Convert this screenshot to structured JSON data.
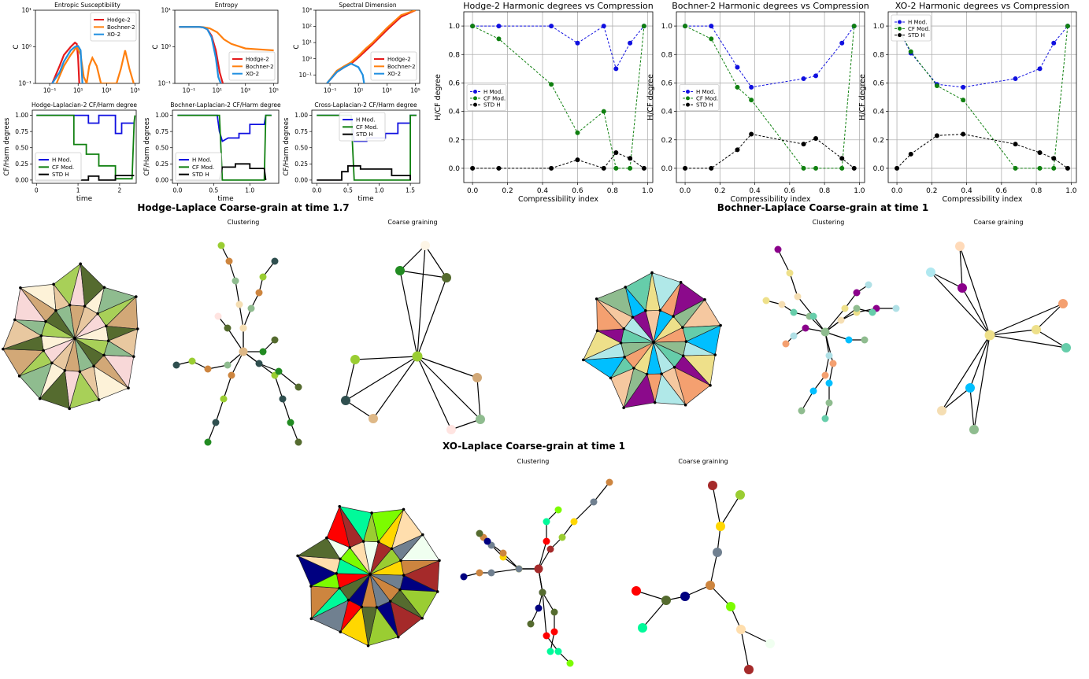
{
  "palette": {
    "hodge": "#e41a1c",
    "bochner": "#ff7f0e",
    "xo": "#1f8fe0",
    "hmod": "#1010e0",
    "cfmod": "#108010",
    "stdh": "#000000"
  },
  "chart_data": [
    {
      "id": "entropic",
      "type": "line",
      "title": "Entropic Susceptibility",
      "xlabel": "",
      "ylabel": "C",
      "xscale": "log",
      "yscale": "log",
      "xlim": [
        0.01,
        200000
      ],
      "ylim": [
        0.1,
        10
      ],
      "xticks": [
        "10⁻¹",
        "10¹",
        "10³",
        "10⁵"
      ],
      "yticks": [
        "10⁻¹",
        "10⁰",
        "10¹"
      ],
      "legend": [
        "Hodge-2",
        "Bochner-2",
        "XO-2"
      ],
      "series": [
        {
          "name": "Hodge-2",
          "x": [
            0.15,
            0.5,
            1,
            3,
            6,
            8,
            10,
            12
          ],
          "y": [
            0.1,
            0.3,
            0.6,
            1.0,
            1.3,
            1.2,
            0.5,
            0.1
          ]
        },
        {
          "name": "Bochner-2",
          "x": [
            0.3,
            1,
            3,
            8,
            15,
            25,
            40,
            60,
            100,
            200,
            400,
            800,
            2000,
            5000,
            10000,
            20000,
            40000,
            80000
          ],
          "y": [
            0.1,
            0.3,
            0.6,
            1.0,
            0.6,
            0.15,
            0.1,
            0.3,
            0.5,
            0.3,
            0.1,
            0.1,
            0.1,
            0.1,
            0.25,
            0.8,
            0.25,
            0.1
          ]
        },
        {
          "name": "XO-2",
          "x": [
            0.15,
            0.5,
            1,
            3,
            6,
            10,
            15,
            20
          ],
          "y": [
            0.1,
            0.2,
            0.4,
            0.8,
            1.0,
            1.05,
            0.8,
            0.1
          ]
        }
      ]
    },
    {
      "id": "entropy",
      "type": "line",
      "title": "Entropy",
      "xlabel": "",
      "ylabel": "C",
      "xscale": "log",
      "yscale": "log",
      "xlim": [
        0.01,
        200000
      ],
      "ylim": [
        0.1,
        10
      ],
      "xticks": [
        "10⁻¹",
        "10¹",
        "10³",
        "10⁵"
      ],
      "yticks": [
        "10⁻¹",
        "10⁰",
        "10¹"
      ],
      "legend": [
        "Hodge-2",
        "Bochner-2",
        "XO-2"
      ],
      "series": [
        {
          "name": "Hodge-2",
          "x": [
            0.02,
            0.5,
            1,
            2,
            4,
            8,
            15,
            25
          ],
          "y": [
            3.5,
            3.5,
            3.4,
            3.0,
            2.0,
            0.8,
            0.2,
            0.1
          ]
        },
        {
          "name": "Bochner-2",
          "x": [
            0.02,
            0.5,
            1,
            3,
            10,
            30,
            100,
            1000,
            10000,
            100000
          ],
          "y": [
            3.5,
            3.5,
            3.45,
            3.2,
            2.5,
            1.6,
            1.2,
            0.9,
            0.85,
            0.8
          ]
        },
        {
          "name": "XO-2",
          "x": [
            0.02,
            0.5,
            1,
            2,
            4,
            8,
            12,
            18
          ],
          "y": [
            3.5,
            3.5,
            3.4,
            3.0,
            1.8,
            0.5,
            0.15,
            0.1
          ]
        }
      ]
    },
    {
      "id": "spectral",
      "type": "line",
      "title": "Spectral Dimension",
      "xlabel": "",
      "ylabel": "C",
      "xscale": "log",
      "yscale": "log",
      "xlim": [
        0.01,
        200000
      ],
      "ylim": [
        0.03,
        1000
      ],
      "xticks": [
        "10⁻¹",
        "10¹",
        "10³",
        "10⁵"
      ],
      "yticks": [
        "10⁻¹",
        "10⁰",
        "10¹",
        "10²",
        "10³"
      ],
      "legend": [
        "Hodge-2",
        "Bochner-2",
        "XO-2"
      ],
      "series": [
        {
          "name": "Hodge-2",
          "x": [
            0.06,
            0.3,
            1,
            3,
            10,
            30,
            100,
            1000,
            10000,
            100000
          ],
          "y": [
            0.03,
            0.15,
            0.3,
            0.5,
            1.2,
            3,
            8,
            60,
            400,
            1000
          ]
        },
        {
          "name": "Bochner-2",
          "x": [
            0.06,
            0.3,
            1,
            3,
            10,
            30,
            100,
            1000,
            10000,
            100000
          ],
          "y": [
            0.03,
            0.18,
            0.35,
            0.6,
            1.5,
            4,
            10,
            80,
            500,
            1000
          ]
        },
        {
          "name": "XO-2",
          "x": [
            0.06,
            0.3,
            1,
            3,
            10,
            20,
            25
          ],
          "y": [
            0.03,
            0.15,
            0.3,
            0.5,
            0.3,
            0.1,
            0.03
          ]
        }
      ]
    },
    {
      "id": "hodge-cf",
      "type": "line",
      "title": "Hodge-Laplacian-2 CF/Harm degree",
      "xlabel": "time",
      "ylabel": "CF/Harm degrees",
      "xlim": [
        -0.1,
        2.4
      ],
      "ylim": [
        -0.05,
        1.08
      ],
      "xticks": [
        "0",
        "1",
        "2"
      ],
      "ytick_values": [
        0,
        0.25,
        0.5,
        0.75,
        1
      ],
      "yticks": [
        "0.00",
        "0.25",
        "0.50",
        "0.75",
        "1.00"
      ],
      "legend": [
        "H Mod.",
        "CF Mod.",
        "STD H"
      ],
      "series": [
        {
          "name": "H Mod.",
          "x": [
            0,
            1.25,
            1.25,
            1.5,
            1.5,
            1.9,
            1.9,
            2.05,
            2.05,
            2.35
          ],
          "y": [
            1,
            1,
            0.88,
            0.88,
            1,
            1,
            0.72,
            0.72,
            0.88,
            0.88
          ]
        },
        {
          "name": "CF Mod.",
          "x": [
            0,
            0.9,
            0.9,
            1.2,
            1.2,
            1.5,
            1.5,
            1.9,
            1.9,
            2.3,
            2.35,
            2.37
          ],
          "y": [
            1,
            1,
            0.55,
            0.55,
            0.4,
            0.4,
            0.22,
            0.22,
            0.02,
            0.02,
            0.9,
            1
          ]
        },
        {
          "name": "STD H",
          "x": [
            0,
            1.25,
            1.25,
            1.5,
            1.5,
            1.9,
            1.9,
            2.35
          ],
          "y": [
            0,
            0,
            0.06,
            0.06,
            0,
            0,
            0.07,
            0.07
          ]
        }
      ]
    },
    {
      "id": "bochner-cf",
      "type": "line",
      "title": "Bochner-Laplacian-2 CF/Harm degree",
      "xlabel": "time",
      "ylabel": "CF/Harm degrees",
      "xlim": [
        -0.07,
        1.4
      ],
      "ylim": [
        -0.05,
        1.08
      ],
      "xticks": [
        "0.0",
        "0.5",
        "1.0"
      ],
      "ytick_values": [
        0,
        0.25,
        0.5,
        0.75,
        1
      ],
      "yticks": [
        "0.00",
        "0.25",
        "0.50",
        "0.75",
        "1.00"
      ],
      "legend": [
        "H Mod.",
        "CF Mod.",
        "STD H"
      ],
      "series": [
        {
          "name": "H Mod.",
          "x": [
            0,
            0.55,
            0.58,
            0.62,
            0.7,
            0.85,
            0.85,
            1.0,
            1.0,
            1.2,
            1.22,
            1.3
          ],
          "y": [
            1,
            1,
            0.75,
            0.6,
            0.65,
            0.65,
            0.72,
            0.72,
            0.86,
            0.86,
            1,
            1
          ]
        },
        {
          "name": "CF Mod.",
          "x": [
            0,
            0.58,
            0.62,
            1.2,
            1.22,
            1.3
          ],
          "y": [
            1,
            1,
            0,
            0,
            1,
            1
          ]
        },
        {
          "name": "STD H",
          "x": [
            0,
            0.58,
            0.62,
            0.8,
            0.8,
            1.0,
            1.0,
            1.2,
            1.22
          ],
          "y": [
            0,
            0,
            0.2,
            0.2,
            0.25,
            0.25,
            0.18,
            0.18,
            0
          ]
        }
      ]
    },
    {
      "id": "cross-cf",
      "type": "line",
      "title": "Cross-Laplacian-2 CF/Harm degree",
      "xlabel": "time",
      "ylabel": "CF/Harm degrees",
      "xlim": [
        -0.08,
        1.65
      ],
      "ylim": [
        -0.05,
        1.08
      ],
      "xticks": [
        "0.0",
        "0.5",
        "1.0",
        "1.5"
      ],
      "ytick_values": [
        0,
        0.25,
        0.5,
        0.75,
        1
      ],
      "yticks": [
        "0.00",
        "0.25",
        "0.50",
        "0.75",
        "1.00"
      ],
      "legend": [
        "H Mod.",
        "CF Mod.",
        "STD H"
      ],
      "series": [
        {
          "name": "H Mod.",
          "x": [
            0,
            0.55,
            0.6,
            0.8,
            0.8,
            1.1,
            1.1,
            1.3,
            1.3,
            1.5,
            1.5,
            1.6
          ],
          "y": [
            1,
            1,
            0.6,
            0.6,
            0.65,
            0.65,
            0.72,
            0.72,
            0.88,
            0.88,
            1,
            1
          ]
        },
        {
          "name": "CF Mod.",
          "x": [
            0,
            0.55,
            0.6,
            1.5,
            1.5,
            1.6
          ],
          "y": [
            1,
            1,
            0,
            0,
            1,
            1
          ]
        },
        {
          "name": "STD H",
          "x": [
            0,
            0.4,
            0.4,
            0.5,
            0.5,
            0.7,
            0.7,
            1.2,
            1.2,
            1.5,
            1.5
          ],
          "y": [
            0,
            0,
            0.13,
            0.13,
            0.22,
            0.22,
            0.17,
            0.17,
            0.07,
            0.07,
            0
          ]
        }
      ]
    },
    {
      "id": "hodge-compression",
      "type": "line",
      "title": "Hodge-2 Harmonic degrees vs Compression",
      "xlabel": "Compressibility index",
      "ylabel": "H/CF degree",
      "xlim": [
        -0.05,
        1.03
      ],
      "ylim": [
        -0.1,
        1.1
      ],
      "xticks": [
        "0.0",
        "0.2",
        "0.4",
        "0.6",
        "0.8",
        "1.0"
      ],
      "ytick_values": [
        0,
        0.2,
        0.4,
        0.6,
        0.8,
        1
      ],
      "yticks": [
        "0.0",
        "0.2",
        "0.4",
        "0.6",
        "0.8",
        "1.0"
      ],
      "legend": [
        "H Mod.",
        "CF Mod.",
        "STD H"
      ],
      "legend_loc": "center-left",
      "series": [
        {
          "name": "H Mod.",
          "x": [
            0,
            0.15,
            0.45,
            0.6,
            0.75,
            0.82,
            0.9,
            0.98
          ],
          "y": [
            1,
            1,
            1,
            0.88,
            1,
            0.7,
            0.88,
            1
          ]
        },
        {
          "name": "CF Mod.",
          "x": [
            0,
            0.15,
            0.45,
            0.6,
            0.75,
            0.82,
            0.9,
            0.98
          ],
          "y": [
            1,
            0.91,
            0.59,
            0.25,
            0.4,
            0,
            0,
            1
          ]
        },
        {
          "name": "STD H",
          "x": [
            0,
            0.15,
            0.45,
            0.6,
            0.75,
            0.82,
            0.9,
            0.98
          ],
          "y": [
            0,
            0,
            0,
            0.06,
            0,
            0.11,
            0.07,
            0
          ]
        }
      ]
    },
    {
      "id": "bochner-compression",
      "type": "line",
      "title": "Bochner-2 Harmonic degrees vs Compression",
      "xlabel": "Compressibility index",
      "ylabel": "H/CF degree",
      "xlim": [
        -0.05,
        1.03
      ],
      "ylim": [
        -0.1,
        1.1
      ],
      "xticks": [
        "0.0",
        "0.2",
        "0.4",
        "0.6",
        "0.8",
        "1.0"
      ],
      "ytick_values": [
        0,
        0.2,
        0.4,
        0.6,
        0.8,
        1
      ],
      "yticks": [
        "0.0",
        "0.2",
        "0.4",
        "0.6",
        "0.8",
        "1.0"
      ],
      "legend": [
        "H Mod.",
        "CF Mod.",
        "STD H"
      ],
      "legend_loc": "center-left",
      "series": [
        {
          "name": "H Mod.",
          "x": [
            0,
            0.15,
            0.3,
            0.38,
            0.68,
            0.75,
            0.9,
            0.97
          ],
          "y": [
            1,
            1,
            0.71,
            0.57,
            0.63,
            0.65,
            0.88,
            1
          ]
        },
        {
          "name": "CF Mod.",
          "x": [
            0,
            0.15,
            0.3,
            0.38,
            0.68,
            0.75,
            0.9,
            0.97
          ],
          "y": [
            1,
            0.91,
            0.57,
            0.48,
            0,
            0,
            0,
            1
          ]
        },
        {
          "name": "STD H",
          "x": [
            0,
            0.15,
            0.3,
            0.38,
            0.68,
            0.75,
            0.9,
            0.97
          ],
          "y": [
            0,
            0,
            0.13,
            0.24,
            0.17,
            0.21,
            0.07,
            0
          ]
        }
      ]
    },
    {
      "id": "xo-compression",
      "type": "line",
      "title": "XO-2 Harmonic degrees vs Compression",
      "xlabel": "Compressibility index",
      "ylabel": "H/CF degree",
      "xlim": [
        -0.05,
        1.03
      ],
      "ylim": [
        -0.1,
        1.1
      ],
      "xticks": [
        "0.0",
        "0.2",
        "0.4",
        "0.6",
        "0.8",
        "1.0"
      ],
      "ytick_values": [
        0,
        0.2,
        0.4,
        0.6,
        0.8,
        1
      ],
      "yticks": [
        "0.0",
        "0.2",
        "0.4",
        "0.6",
        "0.8",
        "1.0"
      ],
      "legend": [
        "H Mod.",
        "CF Mod.",
        "STD H"
      ],
      "legend_loc": "upper-left",
      "series": [
        {
          "name": "H Mod.",
          "x": [
            0,
            0.08,
            0.23,
            0.38,
            0.68,
            0.82,
            0.9,
            0.98
          ],
          "y": [
            1,
            0.81,
            0.59,
            0.57,
            0.63,
            0.7,
            0.88,
            1
          ]
        },
        {
          "name": "CF Mod.",
          "x": [
            0,
            0.08,
            0.23,
            0.38,
            0.68,
            0.82,
            0.9,
            0.98
          ],
          "y": [
            1,
            0.82,
            0.58,
            0.48,
            0,
            0,
            0,
            1
          ]
        },
        {
          "name": "STD H",
          "x": [
            0,
            0.08,
            0.23,
            0.38,
            0.68,
            0.82,
            0.9,
            0.98
          ],
          "y": [
            0,
            0.1,
            0.23,
            0.24,
            0.17,
            0.11,
            0.07,
            0
          ]
        }
      ]
    }
  ],
  "coarse_sections": [
    {
      "title": "Hodge-Laplace Coarse-grain at time 1.7",
      "clustering_label": "Clustering",
      "coarse_label": "Coarse graining",
      "complex_colors": [
        "#f8d8d8",
        "#fdf2d8",
        "#a8d058",
        "#556b2f",
        "#8fbc8f",
        "#d2a877",
        "#e8c8a0"
      ],
      "cluster_colors": [
        "#deb887",
        "#f5deb3",
        "#8fbc8f",
        "#cd853f",
        "#9acd32",
        "#2f4f4f",
        "#228b22",
        "#556b2f",
        "#ffe4e1",
        "#fdf5e6",
        "#f5f5dc"
      ],
      "coarse_colors": [
        "#fdf5e6",
        "#228b22",
        "#556b2f",
        "#9acd32",
        "#2f4f4f",
        "#deb887",
        "#ffe4e1",
        "#8fbc8f",
        "#d2a877",
        "#cd853f"
      ]
    },
    {
      "title": "Bochner-Laplace Coarse-grain at time 1",
      "clustering_label": "Clustering",
      "coarse_label": "Coarse graining",
      "complex_colors": [
        "#b0e8e8",
        "#8b0a8b",
        "#f5c8a0",
        "#00bfff",
        "#eee08a",
        "#f4a070",
        "#8fbc8f",
        "#66cdaa"
      ],
      "cluster_colors": [
        "#8fbc8f",
        "#66cdaa",
        "#f5deb3",
        "#eee08a",
        "#8b008b",
        "#b0e0e6",
        "#f4a070",
        "#00bfff"
      ],
      "coarse_colors": [
        "#ffdab9",
        "#b0e8f0",
        "#8b008b",
        "#eee08a",
        "#f4a070",
        "#66cdaa",
        "#00bfff",
        "#f5deb3",
        "#8fbc8f"
      ]
    },
    {
      "title": "XO-Laplace Coarse-grain at time 1",
      "clustering_label": "Clustering",
      "coarse_label": "Coarse graining",
      "complex_colors": [
        "#a52a2a",
        "#9acd32",
        "#ffd700",
        "#708090",
        "#cd853f",
        "#000080",
        "#556b2f",
        "#ff0000",
        "#00fa9a",
        "#7cfc00",
        "#ffdead",
        "#f0fff0"
      ],
      "cluster_colors": [
        "#a52a2a",
        "#9acd32",
        "#ffd700",
        "#708090",
        "#cd853f",
        "#000080",
        "#556b2f",
        "#ff0000",
        "#00fa9a",
        "#7cfc00",
        "#ffdead",
        "#f0fff0"
      ],
      "coarse_colors": [
        "#a52a2a",
        "#9acd32",
        "#ffd700",
        "#708090",
        "#cd853f",
        "#000080",
        "#556b2f",
        "#ff0000",
        "#00fa9a",
        "#7cfc00",
        "#ffdead",
        "#f0fff0"
      ]
    }
  ]
}
